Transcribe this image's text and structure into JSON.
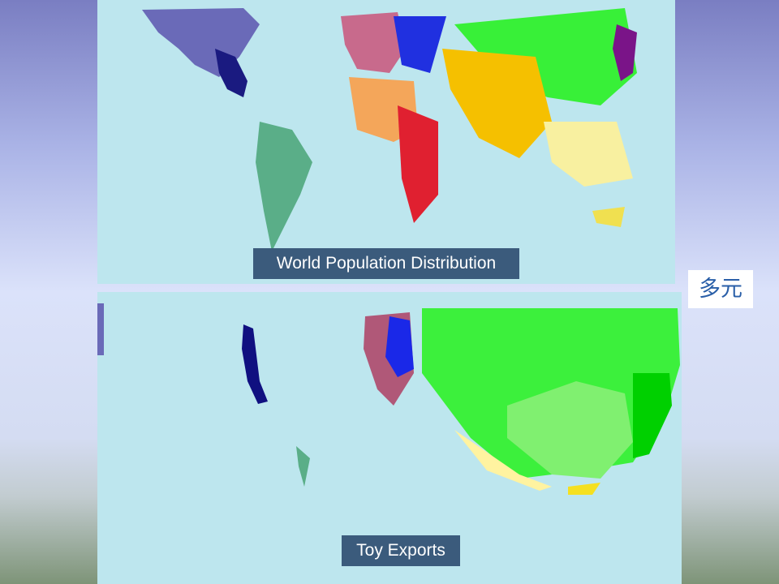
{
  "maps": [
    {
      "caption": "World Population Distribution"
    },
    {
      "caption": "Toy Exports"
    }
  ],
  "side_label": "多元"
}
